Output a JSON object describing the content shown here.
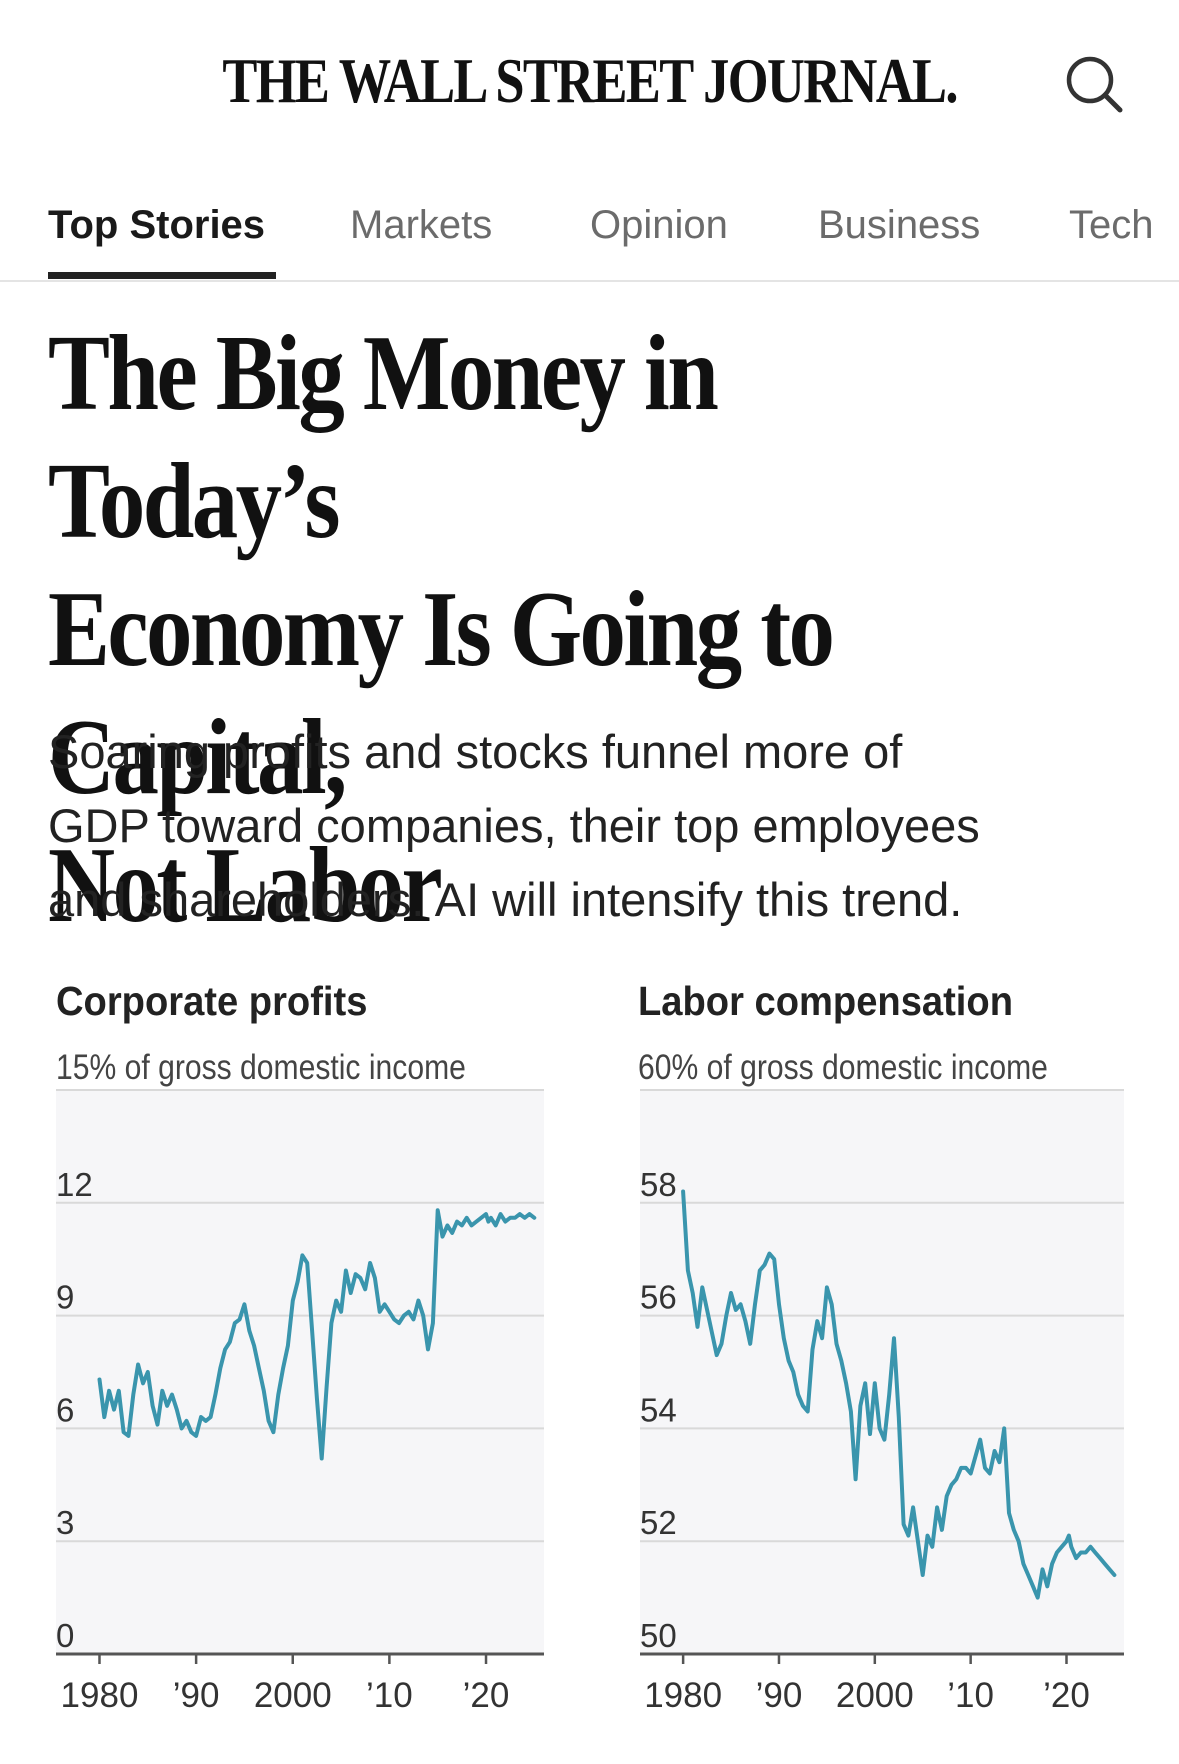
{
  "masthead": {
    "title": "THE WALL STREET JOURNAL."
  },
  "nav": {
    "tabs": [
      {
        "label": "Top Stories",
        "active": true
      },
      {
        "label": "Markets",
        "active": false
      },
      {
        "label": "Opinion",
        "active": false
      },
      {
        "label": "Business",
        "active": false
      },
      {
        "label": "Tech",
        "active": false
      }
    ]
  },
  "article": {
    "headline_lines": [
      "The Big Money in Today’s",
      "Economy Is Going to Capital,",
      "Not Labor"
    ],
    "dek_lines": [
      "Soaring profits and stocks funnel more of",
      "GDP toward companies, their top employees",
      "and shareholders. AI will intensify this trend."
    ]
  },
  "colors": {
    "line": "#3a95ad",
    "grid": "#d9d9d9",
    "panel": "#f6f6f8",
    "axis": "#555555"
  },
  "chart_data": [
    {
      "type": "line",
      "title": "Corporate profits",
      "subtitle": "15% of gross domestic income",
      "ylim": [
        0,
        15
      ],
      "yticks": [
        0,
        3,
        6,
        9,
        12
      ],
      "ytick_labels": [
        "0",
        "3",
        "6",
        "9",
        "12"
      ],
      "xlim": [
        1975.5,
        2026
      ],
      "xticks": [
        1980,
        1990,
        2000,
        2010,
        2020
      ],
      "xtick_labels": [
        "1980",
        "’90",
        "2000",
        "’10",
        "’20"
      ],
      "series": [
        {
          "name": "Corporate profits",
          "x": [
            1980,
            1980.5,
            1981,
            1981.5,
            1982,
            1982.5,
            1983,
            1983.5,
            1984,
            1984.5,
            1985,
            1985.5,
            1986,
            1986.5,
            1987,
            1987.5,
            1988,
            1988.5,
            1989,
            1989.5,
            1990,
            1990.5,
            1991,
            1991.5,
            1992,
            1992.5,
            1993,
            1993.5,
            1994,
            1994.5,
            1995,
            1995.5,
            1996,
            1996.5,
            1997,
            1997.5,
            1998,
            1998.5,
            1999,
            1999.5,
            2000,
            2000.5,
            2001,
            2001.5,
            2002,
            2002.5,
            2003,
            2003.5,
            2004,
            2004.5,
            2005,
            2005.5,
            2006,
            2006.5,
            2007,
            2007.5,
            2008,
            2008.5,
            2009,
            2009.5,
            2010,
            2010.5,
            2011,
            2011.5,
            2012,
            2012.5,
            2013,
            2013.5,
            2014,
            2014.5,
            2015,
            2015.5,
            2016,
            2016.5,
            2017,
            2017.5,
            2018,
            2018.5,
            2019,
            2019.5,
            2020,
            2020.25,
            2020.5,
            2021,
            2021.5,
            2022,
            2022.5,
            2023,
            2023.5,
            2024,
            2024.5,
            2025
          ],
          "values": [
            7.3,
            6.3,
            7.0,
            6.5,
            7.0,
            5.9,
            5.8,
            6.9,
            7.7,
            7.2,
            7.5,
            6.6,
            6.1,
            7.0,
            6.6,
            6.9,
            6.5,
            6.0,
            6.2,
            5.9,
            5.8,
            6.3,
            6.2,
            6.3,
            6.9,
            7.6,
            8.1,
            8.3,
            8.8,
            8.9,
            9.3,
            8.6,
            8.2,
            7.6,
            7.0,
            6.2,
            5.9,
            6.9,
            7.6,
            8.2,
            9.4,
            9.9,
            10.6,
            10.4,
            8.6,
            6.8,
            5.2,
            7.1,
            8.8,
            9.4,
            9.1,
            10.2,
            9.6,
            10.1,
            10.0,
            9.7,
            10.4,
            10.0,
            9.1,
            9.3,
            9.1,
            8.9,
            8.8,
            9.0,
            9.1,
            8.9,
            9.4,
            9.0,
            8.1,
            8.8,
            11.8,
            11.1,
            11.4,
            11.2,
            11.5,
            11.4,
            11.6,
            11.4,
            11.5,
            11.6,
            11.7,
            11.5,
            11.6,
            11.4,
            11.7,
            11.5,
            11.6,
            11.6,
            11.7,
            11.6,
            11.7,
            11.6
          ]
        }
      ]
    },
    {
      "type": "line",
      "title": "Labor compensation",
      "subtitle": "60% of gross domestic income",
      "ylim": [
        50,
        60
      ],
      "yticks": [
        50,
        52,
        54,
        56,
        58
      ],
      "ytick_labels": [
        "50",
        "52",
        "54",
        "56",
        "58"
      ],
      "xlim": [
        1975.5,
        2026
      ],
      "xticks": [
        1980,
        1990,
        2000,
        2010,
        2020
      ],
      "xtick_labels": [
        "1980",
        "’90",
        "2000",
        "’10",
        "’20"
      ],
      "series": [
        {
          "name": "Labor compensation",
          "x": [
            1980,
            1980.5,
            1981,
            1981.5,
            1982,
            1982.5,
            1983,
            1983.5,
            1984,
            1984.5,
            1985,
            1985.5,
            1986,
            1986.5,
            1987,
            1987.5,
            1988,
            1988.5,
            1989,
            1989.5,
            1990,
            1990.5,
            1991,
            1991.5,
            1992,
            1992.5,
            1993,
            1993.5,
            1994,
            1994.5,
            1995,
            1995.5,
            1996,
            1996.5,
            1997,
            1997.5,
            1998,
            1998.5,
            1999,
            1999.5,
            2000,
            2000.5,
            2001,
            2001.5,
            2002,
            2002.5,
            2003,
            2003.5,
            2004,
            2004.5,
            2005,
            2005.5,
            2006,
            2006.5,
            2007,
            2007.5,
            2008,
            2008.5,
            2009,
            2009.5,
            2010,
            2010.5,
            2011,
            2011.5,
            2012,
            2012.5,
            2013,
            2013.5,
            2014,
            2014.5,
            2015,
            2015.5,
            2016,
            2016.5,
            2017,
            2017.5,
            2018,
            2018.5,
            2019,
            2019.5,
            2020,
            2020.25,
            2020.5,
            2021,
            2021.5,
            2022,
            2022.5,
            2023,
            2023.5,
            2024,
            2024.5,
            2025
          ],
          "values": [
            58.2,
            56.8,
            56.4,
            55.8,
            56.5,
            56.1,
            55.7,
            55.3,
            55.5,
            56.0,
            56.4,
            56.1,
            56.2,
            55.9,
            55.5,
            56.2,
            56.8,
            56.9,
            57.1,
            57.0,
            56.2,
            55.6,
            55.2,
            55.0,
            54.6,
            54.4,
            54.3,
            55.4,
            55.9,
            55.6,
            56.5,
            56.2,
            55.5,
            55.2,
            54.8,
            54.3,
            53.1,
            54.4,
            54.8,
            53.9,
            54.8,
            54.0,
            53.8,
            54.6,
            55.6,
            54.2,
            52.3,
            52.1,
            52.6,
            52.0,
            51.4,
            52.1,
            51.9,
            52.6,
            52.2,
            52.8,
            53.0,
            53.1,
            53.3,
            53.3,
            53.2,
            53.5,
            53.8,
            53.3,
            53.2,
            53.6,
            53.4,
            54.0,
            52.5,
            52.2,
            52.0,
            51.6,
            51.4,
            51.2,
            51.0,
            51.5,
            51.2,
            51.6,
            51.8,
            51.9,
            52.0,
            52.1,
            51.9,
            51.7,
            51.8,
            51.8,
            51.9,
            51.8,
            51.7,
            51.6,
            51.5,
            51.4
          ]
        }
      ]
    }
  ]
}
